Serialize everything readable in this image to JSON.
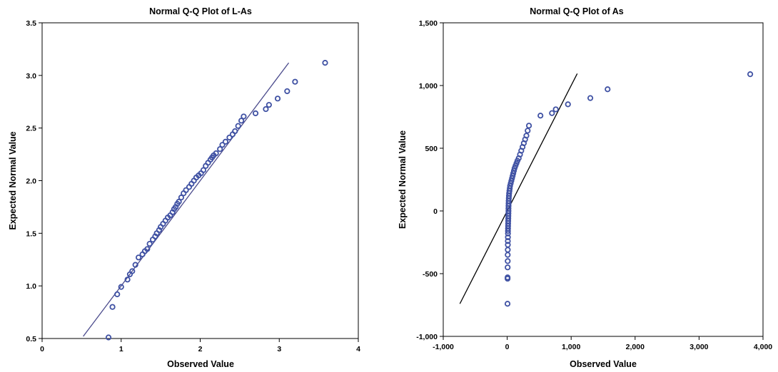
{
  "chart_data": [
    {
      "type": "scatter",
      "title": "Normal Q-Q Plot of L-As",
      "xlabel": "Observed Value",
      "ylabel": "Expected Normal Value",
      "xlim": [
        0,
        4
      ],
      "ylim": [
        0.5,
        3.5
      ],
      "xticks": [
        0,
        1,
        2,
        3,
        4
      ],
      "xtick_labels": [
        "0",
        "1",
        "2",
        "3",
        "4"
      ],
      "yticks": [
        0.5,
        1.0,
        1.5,
        2.0,
        2.5,
        3.0,
        3.5
      ],
      "ytick_labels": [
        "0.5",
        "1.0",
        "1.5",
        "2.0",
        "2.5",
        "3.0",
        "3.5"
      ],
      "marker_color": "#3f51a3",
      "line_color": "#4a4a8c",
      "reference_line": {
        "x": [
          0.52,
          3.12
        ],
        "y": [
          0.52,
          3.12
        ]
      },
      "series": [
        {
          "x": [
            0.84,
            0.89,
            0.95,
            1.0,
            1.08,
            1.11,
            1.14,
            1.18,
            1.22,
            1.27,
            1.3,
            1.33,
            1.36,
            1.4,
            1.43,
            1.45,
            1.48,
            1.5,
            1.53,
            1.56,
            1.59,
            1.62,
            1.65,
            1.67,
            1.69,
            1.71,
            1.73,
            1.76,
            1.79,
            1.82,
            1.86,
            1.89,
            1.92,
            1.95,
            1.98,
            2.01,
            2.04,
            2.07,
            2.1,
            2.13,
            2.15,
            2.17,
            2.2,
            2.25,
            2.28,
            2.32,
            2.37,
            2.41,
            2.44,
            2.48,
            2.52,
            2.55,
            2.7,
            2.83,
            2.87,
            2.98,
            3.1,
            3.2,
            3.58
          ],
          "y": [
            0.51,
            0.8,
            0.92,
            0.99,
            1.06,
            1.11,
            1.14,
            1.2,
            1.27,
            1.3,
            1.33,
            1.35,
            1.4,
            1.44,
            1.47,
            1.5,
            1.53,
            1.56,
            1.59,
            1.62,
            1.65,
            1.67,
            1.7,
            1.73,
            1.75,
            1.78,
            1.8,
            1.84,
            1.88,
            1.91,
            1.94,
            1.97,
            2.0,
            2.03,
            2.05,
            2.07,
            2.1,
            2.14,
            2.17,
            2.2,
            2.22,
            2.24,
            2.26,
            2.3,
            2.34,
            2.37,
            2.41,
            2.44,
            2.47,
            2.52,
            2.57,
            2.61,
            2.64,
            2.68,
            2.72,
            2.78,
            2.85,
            2.94,
            3.12
          ]
        }
      ]
    },
    {
      "type": "scatter",
      "title": "Normal Q-Q Plot of As",
      "xlabel": "Observed Value",
      "ylabel": "Expected Normal Value",
      "xlim": [
        -1000,
        4000
      ],
      "ylim": [
        -1000,
        1500
      ],
      "xticks": [
        -1000,
        0,
        1000,
        2000,
        3000,
        4000
      ],
      "xtick_labels": [
        "-1,000",
        "0",
        "1,000",
        "2,000",
        "3,000",
        "4,000"
      ],
      "yticks": [
        -1000,
        -500,
        0,
        500,
        1000,
        1500
      ],
      "ytick_labels": [
        "-1,000",
        "-500",
        "0",
        "500",
        "1,000",
        "1,500"
      ],
      "marker_color": "#3f51a3",
      "line_color": "#000000",
      "reference_line": {
        "x": [
          -740,
          1095
        ],
        "y": [
          -740,
          1095
        ]
      },
      "series": [
        {
          "x": [
            5,
            6,
            6,
            7,
            8,
            8,
            9,
            10,
            10,
            11,
            12,
            12,
            13,
            14,
            15,
            16,
            17,
            18,
            19,
            20,
            20,
            21,
            22,
            23,
            25,
            27,
            30,
            35,
            40,
            45,
            55,
            65,
            75,
            85,
            95,
            105,
            115,
            130,
            145,
            160,
            180,
            200,
            220,
            240,
            260,
            280,
            300,
            320,
            340,
            520,
            700,
            760,
            950,
            1300,
            1570,
            3800
          ],
          "y": [
            -740,
            -540,
            -530,
            -450,
            -400,
            -350,
            -310,
            -270,
            -240,
            -210,
            -180,
            -160,
            -140,
            -120,
            -100,
            -80,
            -60,
            -40,
            -20,
            0,
            20,
            40,
            60,
            80,
            100,
            120,
            140,
            160,
            180,
            200,
            220,
            240,
            260,
            280,
            300,
            320,
            340,
            360,
            380,
            400,
            420,
            450,
            480,
            510,
            540,
            570,
            600,
            640,
            680,
            760,
            780,
            810,
            850,
            900,
            970,
            1090
          ]
        }
      ]
    }
  ]
}
